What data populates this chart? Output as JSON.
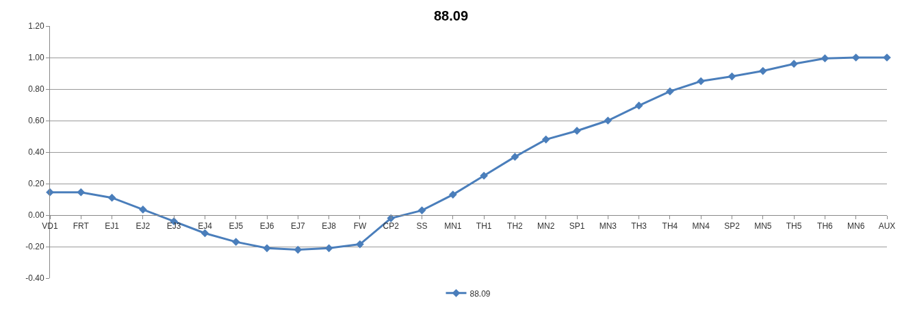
{
  "chart_data": {
    "type": "line",
    "title": "88.09",
    "categories": [
      "VD1",
      "FRT",
      "EJ1",
      "EJ2",
      "EJ3",
      "EJ4",
      "EJ5",
      "EJ6",
      "EJ7",
      "EJ8",
      "FW",
      "CP2",
      "SS",
      "MN1",
      "TH1",
      "TH2",
      "MN2",
      "SP1",
      "MN3",
      "TH3",
      "TH4",
      "MN4",
      "SP2",
      "MN5",
      "TH5",
      "TH6",
      "MN6",
      "AUX"
    ],
    "series": [
      {
        "name": "88.09",
        "color": "#4a7ebb",
        "values": [
          0.145,
          0.145,
          0.11,
          0.035,
          -0.04,
          -0.115,
          -0.17,
          -0.21,
          -0.22,
          -0.21,
          -0.185,
          -0.02,
          0.03,
          0.13,
          0.25,
          0.37,
          0.48,
          0.535,
          0.6,
          0.695,
          0.785,
          0.85,
          0.88,
          0.915,
          0.96,
          0.995,
          1.0,
          1.0
        ]
      }
    ],
    "ylim": [
      -0.4,
      1.2
    ],
    "yticks": [
      {
        "value": -0.4,
        "label": "-0.40"
      },
      {
        "value": -0.2,
        "label": "-0.20"
      },
      {
        "value": 0,
        "label": "0.00"
      },
      {
        "value": 0.2,
        "label": "0.20"
      },
      {
        "value": 0.4,
        "label": "0.40"
      },
      {
        "value": 0.6,
        "label": "0.60"
      },
      {
        "value": 0.8,
        "label": "0.80"
      },
      {
        "value": 1.0,
        "label": "1.00"
      },
      {
        "value": 1.2,
        "label": "1.20"
      }
    ],
    "grid": "y",
    "legend": "bottom",
    "marker": "diamond",
    "line_style": "solid"
  }
}
